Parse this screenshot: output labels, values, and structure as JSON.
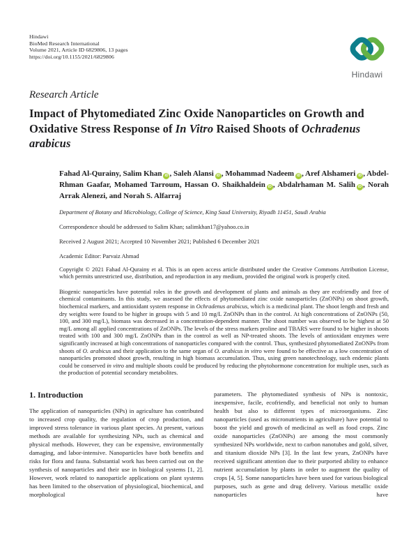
{
  "header": {
    "publisher": "Hindawi",
    "journal": "BioMed Research International",
    "volume_line": "Volume 2021, Article ID 6829806, 13 pages",
    "doi": "https://doi.org/10.1155/2021/6829806"
  },
  "logo": {
    "wordmark": "Hindawi",
    "teal": "#0E7F8C",
    "green": "#66B245",
    "wordmark_color": "#5E6164"
  },
  "article": {
    "type_label": "Research Article",
    "title_html": "Impact of Phytomediated Zinc Oxide Nanoparticles on Growth and Oxidative Stress Response of <i>In Vitro</i> Raised Shoots of <i>Ochradenus arabicus</i>",
    "orcid_color": "#A6CE39",
    "authors": [
      {
        "name": "Fahad Al-Qurainy",
        "orcid": false
      },
      {
        "name": "Salim Khan",
        "orcid": true
      },
      {
        "name": "Saleh Alansi",
        "orcid": true
      },
      {
        "name": "Mohammad Nadeem",
        "orcid": true
      },
      {
        "name": "Aref Alshameri",
        "orcid": true
      },
      {
        "name": "Abdel-Rhman Gaafar",
        "orcid": false
      },
      {
        "name": "Mohamed Tarroum",
        "orcid": false
      },
      {
        "name": "Hassan O. Shaikhaldein",
        "orcid": true
      },
      {
        "name": "Abdalrhaman M. Salih",
        "orcid": true
      },
      {
        "name": "Norah Arrak Alenezi",
        "orcid": false
      },
      {
        "name": "Norah S. Alfarraj",
        "orcid": false
      }
    ],
    "affiliation": "Department of Botany and Microbiology, College of Science, King Saud University, Riyadh 11451, Saudi Arabia",
    "correspondence_prefix": "Correspondence should be addressed to Salim Khan; ",
    "correspondence_email": "salimkhan17@yahoo.co.in",
    "history": "Received 2 August 2021; Accepted 10 November 2021; Published 6 December 2021",
    "editor": "Academic Editor: Parvaiz Ahmad",
    "copyright": "Copyright © 2021 Fahad Al-Qurainy et al. This is an open access article distributed under the Creative Commons Attribution License, which permits unrestricted use, distribution, and reproduction in any medium, provided the original work is properly cited.",
    "abstract_html": "Biogenic nanoparticles have potential roles in the growth and development of plants and animals as they are ecofriendly and free of chemical contaminants. In this study, we assessed the effects of phytomediated zinc oxide nanoparticles (ZnONPs) on shoot growth, biochemical markers, and antioxidant system response in <i>Ochradenus arabicus</i>, which is a medicinal plant. The shoot length and fresh and dry weights were found to be higher in groups with 5 and 10 mg/L ZnONPs than in the control. At high concentrations of ZnONPs (50, 100, and 300 mg/L), biomass was decreased in a concentration-dependent manner. The shoot number was observed to be highest at 50 mg/L among all applied concentrations of ZnONPs. The levels of the stress markers proline and TBARS were found to be higher in shoots treated with 100 and 300 mg/L ZnONPs than in the control as well as NP-treated shoots. The levels of antioxidant enzymes were significantly increased at high concentrations of nanoparticles compared with the control. Thus, synthesized phytomediated ZnONPs from shoots of <i>O. arabicus</i> and their application to the same organ of <i>O. arabicus in vitro</i> were found to be effective as a low concentration of nanoparticles promoted shoot growth, resulting in high biomass accumulation. Thus, using green nanotechnology, such endemic plants could be conserved <i>in vitro</i> and multiple shoots could be produced by reducing the phytohormone concentration for multiple uses, such as the production of potential secondary metabolites."
  },
  "body": {
    "intro_heading": "1. Introduction",
    "intro_left": "The application of nanoparticles (NPs) in agriculture has contributed to increased crop quality, the regulation of crop production, and improved stress tolerance in various plant species. At present, various methods are available for synthesizing NPs, such as chemical and physical methods. However, they can be expensive, environmentally damaging, and labor-intensive. Nanoparticles have both benefits and risks for flora and fauna. Substantial work has been carried out on the synthesis of nanoparticles and their use in biological systems [1, 2]. However, work related to nanoparticle applications on plant systems has been limited to the observation of physiological, biochemical, and morphological",
    "intro_right": "parameters. The phytomediated synthesis of NPs is nontoxic, inexpensive, facile, ecofriendly, and beneficial not only to human health but also to different types of microorganisms. Zinc nanoparticles (used as micronutrients in agriculture) have potential to boost the yield and growth of medicinal as well as food crops. Zinc oxide nanoparticles (ZnONPs) are among the most commonly synthesized NPs worldwide, next to carbon nanotubes and gold, silver, and titanium dioxide NPs [3]. In the last few years, ZnONPs have received significant attention due to their purported ability to enhance nutrient accumulation by plants in order to augment the quality of crops [4, 5]. Some nanoparticles have been used for various biological purposes, such as gene and drug delivery. Various metallic oxide nanoparticles have"
  }
}
